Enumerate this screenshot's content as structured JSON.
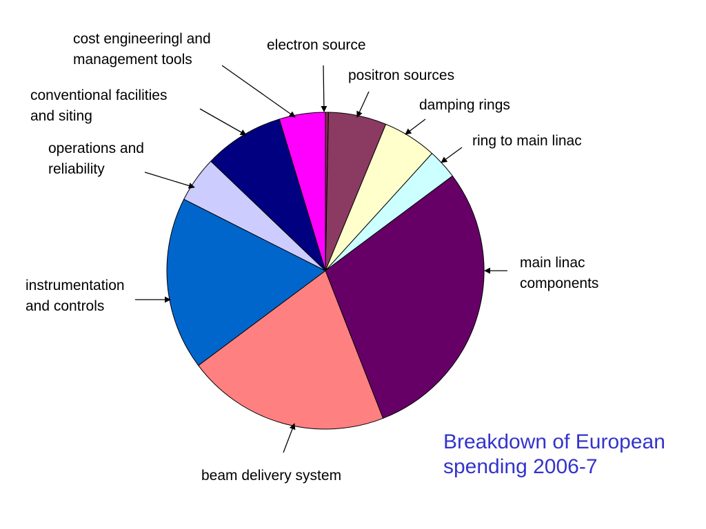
{
  "chart_data": {
    "type": "pie",
    "title": [
      "Breakdown of European",
      "spending 2006-7"
    ],
    "title_color": "#3333cc",
    "slices": [
      {
        "label": [
          "electron source"
        ],
        "value": 0.3,
        "color": "#8b2a52"
      },
      {
        "label": [
          "positron sources"
        ],
        "value": 5.8,
        "color": "#8b3a62"
      },
      {
        "label": [
          "damping rings"
        ],
        "value": 5.4,
        "color": "#ffffcc"
      },
      {
        "label": [
          "ring to main linac"
        ],
        "value": 3.0,
        "color": "#ccffff"
      },
      {
        "label": [
          "main linac",
          "components"
        ],
        "value": 28.7,
        "color": "#660066"
      },
      {
        "label": [
          "beam delivery system"
        ],
        "value": 20.3,
        "color": "#ff8080"
      },
      {
        "label": [
          "instrumentation",
          "and controls"
        ],
        "value": 17.3,
        "color": "#0066cc"
      },
      {
        "label": [
          "operations and",
          "reliability"
        ],
        "value": 4.6,
        "color": "#ccccff"
      },
      {
        "label": [
          "conventional facilities",
          "and siting"
        ],
        "value": 8.0,
        "color": "#000080"
      },
      {
        "label": [
          "cost engineeringl and",
          "management tools"
        ],
        "value": 4.6,
        "color": "#ff00ff"
      }
    ]
  }
}
